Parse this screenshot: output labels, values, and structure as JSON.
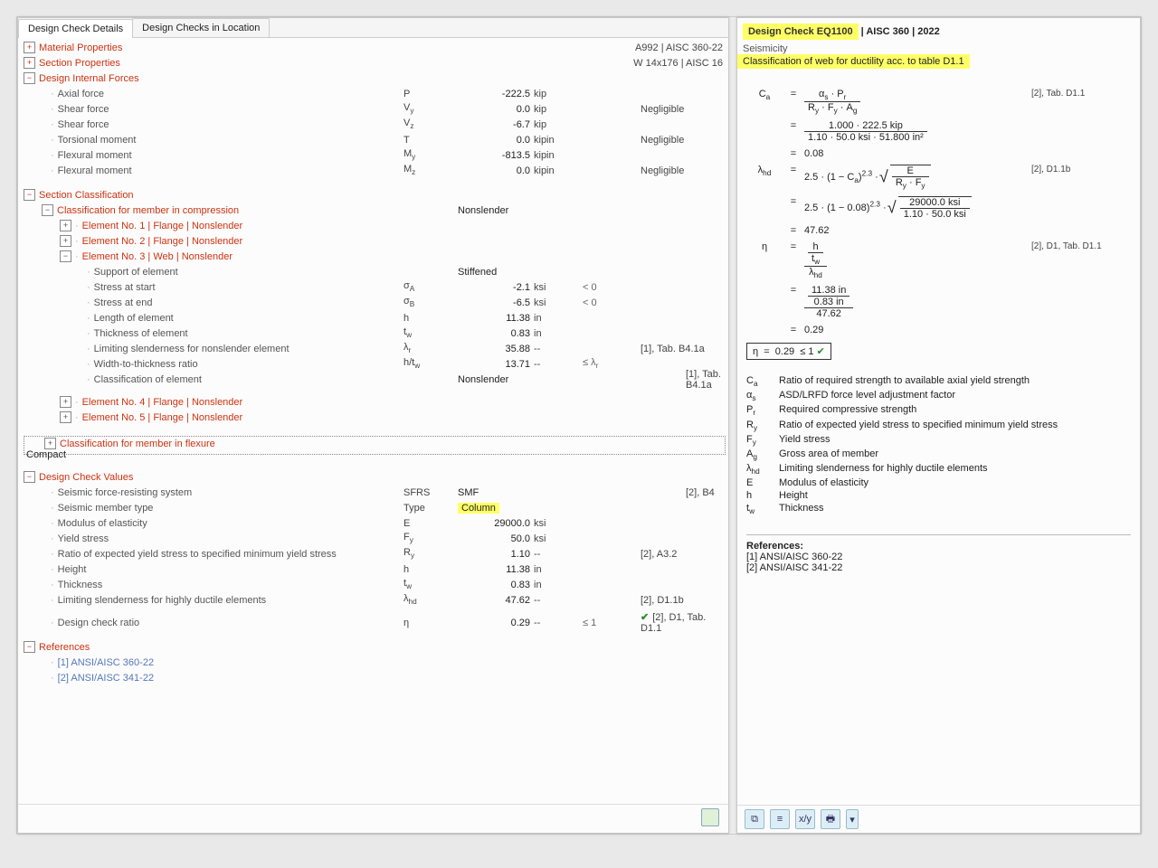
{
  "tabs": {
    "t0": "Design Check Details",
    "t1": "Design Checks in Location"
  },
  "hdr_matprop": "Material Properties",
  "hdr_matprop_meta": "A992 | AISC 360-22",
  "hdr_secprop": "Section Properties",
  "hdr_secprop_meta": "W 14x176 | AISC 16",
  "hdr_dif": "Design Internal Forces",
  "dif": [
    {
      "l": "Axial force",
      "s": "P",
      "v": "-222.5",
      "u": "kip",
      "n": "",
      "r": ""
    },
    {
      "l": "Shear force",
      "s": "V",
      "sub": "y",
      "v": "0.0",
      "u": "kip",
      "n": "",
      "r": "Negligible"
    },
    {
      "l": "Shear force",
      "s": "V",
      "sub": "z",
      "v": "-6.7",
      "u": "kip",
      "n": "",
      "r": ""
    },
    {
      "l": "Torsional moment",
      "s": "T",
      "v": "0.0",
      "u": "kipin",
      "n": "",
      "r": "Negligible"
    },
    {
      "l": "Flexural moment",
      "s": "M",
      "sub": "y",
      "v": "-813.5",
      "u": "kipin",
      "n": "",
      "r": ""
    },
    {
      "l": "Flexural moment",
      "s": "M",
      "sub": "z",
      "v": "0.0",
      "u": "kipin",
      "n": "",
      "r": "Negligible"
    }
  ],
  "hdr_seccls": "Section Classification",
  "cls_comp": "Classification for member in compression",
  "cls_comp_val": "Nonslender",
  "elem1": "Element No. 1 | Flange | Nonslender",
  "elem2": "Element No. 2 | Flange | Nonslender",
  "elem3": "Element No. 3 | Web | Nonslender",
  "e3rows": [
    {
      "l": "Support of element",
      "s": "",
      "v": "Stiffened",
      "u": "",
      "n": "",
      "r": "",
      "txt": true
    },
    {
      "l": "Stress at start",
      "s": "σ",
      "sub": "A",
      "v": "-2.1",
      "u": "ksi",
      "n": "< 0",
      "r": ""
    },
    {
      "l": "Stress at end",
      "s": "σ",
      "sub": "B",
      "v": "-6.5",
      "u": "ksi",
      "n": "< 0",
      "r": ""
    },
    {
      "l": "Length of element",
      "s": "h",
      "v": "11.38",
      "u": "in",
      "n": "",
      "r": ""
    },
    {
      "l": "Thickness of element",
      "s": "t",
      "sub": "w",
      "v": "0.83",
      "u": "in",
      "n": "",
      "r": ""
    },
    {
      "l": "Limiting slenderness for nonslender element",
      "s": "λ",
      "sub": "r",
      "v": "35.88",
      "u": "--",
      "n": "",
      "r": "[1], Tab. B4.1a"
    },
    {
      "l": "Width-to-thickness ratio",
      "s": "h/t",
      "sub": "w",
      "v": "13.71",
      "u": "--",
      "n": "≤ λ",
      "nsub": "r",
      "r": ""
    },
    {
      "l": "Classification of element",
      "s": "",
      "v": "Nonslender",
      "u": "",
      "n": "",
      "r": "[1], Tab. B4.1a",
      "txt": true
    }
  ],
  "elem4": "Element No. 4 | Flange | Nonslender",
  "elem5": "Element No. 5 | Flange | Nonslender",
  "cls_flex": "Classification for member in flexure",
  "cls_flex_val": "Compact",
  "hdr_dcv": "Design Check Values",
  "dcv": [
    {
      "l": "Seismic force-resisting system",
      "s": "SFRS",
      "v": "SMF",
      "u": "",
      "n": "",
      "r": "[2], B4",
      "txt": true
    },
    {
      "l": "Seismic member type",
      "s": "Type",
      "v": "Column",
      "u": "",
      "n": "",
      "r": "",
      "txt": true,
      "hl": true
    },
    {
      "l": "Modulus of elasticity",
      "s": "E",
      "v": "29000.0",
      "u": "ksi",
      "n": "",
      "r": ""
    },
    {
      "l": "Yield stress",
      "s": "F",
      "sub": "y",
      "v": "50.0",
      "u": "ksi",
      "n": "",
      "r": ""
    },
    {
      "l": "Ratio of expected yield stress to specified minimum yield stress",
      "s": "R",
      "sub": "y",
      "v": "1.10",
      "u": "--",
      "n": "",
      "r": "[2], A3.2"
    },
    {
      "l": "Height",
      "s": "h",
      "v": "11.38",
      "u": "in",
      "n": "",
      "r": ""
    },
    {
      "l": "Thickness",
      "s": "t",
      "sub": "w",
      "v": "0.83",
      "u": "in",
      "n": "",
      "r": ""
    },
    {
      "l": "Limiting slenderness for highly ductile elements",
      "s": "λ",
      "sub": "hd",
      "v": "47.62",
      "u": "--",
      "n": "",
      "r": "[2], D1.1b"
    }
  ],
  "dcr": {
    "l": "Design check ratio",
    "s": "η",
    "v": "0.29",
    "u": "--",
    "n": "≤ 1",
    "r": "[2], D1, Tab. D1.1"
  },
  "hdr_refs": "References",
  "ref1": "[1]  ANSI/AISC 360-22",
  "ref2": "[2]  ANSI/AISC 341-22",
  "right": {
    "title": "Design Check EQ1100",
    "title_suffix": " | AISC 360 | 2022",
    "seismicity": "Seismicity",
    "subtitle": "Classification of web for ductility acc. to table D1.1",
    "ca": {
      "ref": "[2], Tab. D1.1",
      "num_sym": "α",
      "num_sub": "s",
      "num_mul": "P",
      "num_mul_sub": "r",
      "den": "R_y · F_y · A_g",
      "num2": "1.000 · 222.5 kip",
      "den2": "1.10 · 50.0 ksi · 51.800 in²",
      "res": "0.08"
    },
    "lhd": {
      "ref": "[2], D1.1b",
      "expr1": "2.5 · (1 − C_a)^{2.3} · ",
      "sqrt_top": "E",
      "sqrt_bot": "R_y · F_y",
      "expr2": "2.5 · (1 − 0.08)^{2.3} · ",
      "sqrt2_top": "29000.0 ksi",
      "sqrt2_bot": "1.10 · 50.0 ksi",
      "res": "47.62"
    },
    "eta": {
      "ref": "[2], D1, Tab. D1.1",
      "h": "11.38 in",
      "tw": "0.83 in",
      "lhd": "47.62",
      "res": "0.29",
      "final": "η   =    0.29  ≤ 1 ✔"
    },
    "glossary": [
      {
        "s": "C",
        "sub": "a",
        "d": "Ratio of required strength to available axial yield strength"
      },
      {
        "s": "α",
        "sub": "s",
        "d": "ASD/LRFD force level adjustment factor"
      },
      {
        "s": "P",
        "sub": "r",
        "d": "Required compressive strength"
      },
      {
        "s": "R",
        "sub": "y",
        "d": "Ratio of expected yield stress to specified minimum yield stress"
      },
      {
        "s": "F",
        "sub": "y",
        "d": "Yield stress"
      },
      {
        "s": "A",
        "sub": "g",
        "d": "Gross area of member"
      },
      {
        "s": "λ",
        "sub": "hd",
        "d": "Limiting slenderness for highly ductile elements"
      },
      {
        "s": "E",
        "sub": "",
        "d": "Modulus of elasticity"
      },
      {
        "s": "h",
        "sub": "",
        "d": "Height"
      },
      {
        "s": "t",
        "sub": "w",
        "d": "Thickness"
      }
    ],
    "refs_h": "References:",
    "ref1": "[1]  ANSI/AISC 360-22",
    "ref2": "[2]  ANSI/AISC 341-22"
  }
}
